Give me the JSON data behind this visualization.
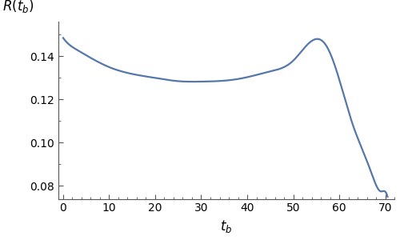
{
  "line_color": "#5577aa",
  "line_width": 1.6,
  "xlim": [
    -1,
    72
  ],
  "ylim": [
    0.074,
    0.156
  ],
  "xticks": [
    0,
    10,
    20,
    30,
    40,
    50,
    60,
    70
  ],
  "yticks": [
    0.08,
    0.1,
    0.12,
    0.14
  ],
  "xlabel": "$t_b$",
  "ylabel": "$R(t_b)$",
  "figsize": [
    5.0,
    3.0
  ],
  "dpi": 100,
  "key_tb": [
    0,
    3,
    10,
    20,
    25,
    30,
    38,
    45,
    50,
    55,
    57,
    59,
    61,
    63,
    65,
    67,
    69,
    70.5
  ],
  "key_R": [
    0.1485,
    0.143,
    0.135,
    0.13,
    0.1285,
    0.1283,
    0.1295,
    0.133,
    0.138,
    0.148,
    0.1455,
    0.136,
    0.122,
    0.108,
    0.097,
    0.086,
    0.0775,
    0.075
  ]
}
